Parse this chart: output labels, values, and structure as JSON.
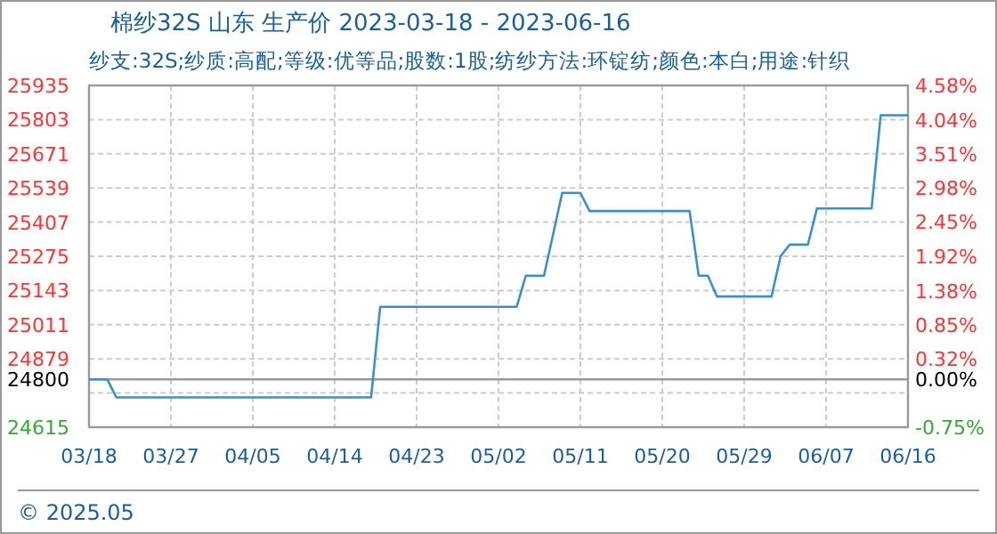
{
  "chart_data": {
    "type": "line",
    "title": "棉纱32S 山东 生产价 2023-03-18 - 2023-06-16",
    "subtitle": "纱支:32S;纱质:高配;等级:优等品;股数:1股;纺纱方法:环锭纺;颜色:本白;用途:针织",
    "x": [
      "2023-03-18",
      "2023-03-20",
      "2023-03-21",
      "2023-04-18",
      "2023-04-19",
      "2023-05-04",
      "2023-05-05",
      "2023-05-07",
      "2023-05-09",
      "2023-05-11",
      "2023-05-12",
      "2023-05-23",
      "2023-05-24",
      "2023-05-25",
      "2023-05-26",
      "2023-06-01",
      "2023-06-02",
      "2023-06-03",
      "2023-06-05",
      "2023-06-06",
      "2023-06-12",
      "2023-06-13",
      "2023-06-16"
    ],
    "series": [
      {
        "color": "#3a8fd0",
        "values": [
          24800,
          24800,
          24730,
          24730,
          25080,
          25080,
          25200,
          25200,
          25520,
          25520,
          25450,
          25450,
          25200,
          25200,
          25120,
          25120,
          25275,
          25320,
          25320,
          25460,
          25460,
          25820,
          25820
        ]
      }
    ],
    "xlim": [
      "2023-03-18",
      "2023-06-16"
    ],
    "xticks": [
      {
        "value": "2023-03-18",
        "label": "03/18"
      },
      {
        "value": "2023-03-27",
        "label": "03/27"
      },
      {
        "value": "2023-04-05",
        "label": "04/05"
      },
      {
        "value": "2023-04-14",
        "label": "04/14"
      },
      {
        "value": "2023-04-23",
        "label": "04/23"
      },
      {
        "value": "2023-05-02",
        "label": "05/02"
      },
      {
        "value": "2023-05-11",
        "label": "05/11"
      },
      {
        "value": "2023-05-20",
        "label": "05/20"
      },
      {
        "value": "2023-05-29",
        "label": "05/29"
      },
      {
        "value": "2023-06-07",
        "label": "06/07"
      },
      {
        "value": "2023-06-16",
        "label": "06/16"
      }
    ],
    "ylim": [
      24615,
      25935
    ],
    "yticks": [
      25935,
      25803,
      25671,
      25539,
      25407,
      25275,
      25143,
      25011,
      24879,
      24800,
      {
        "value": 24747,
        "label": null
      },
      24615
    ],
    "y2lim": [
      -0.75,
      4.58
    ],
    "y2ticks": [
      {
        "value": 4.58,
        "label": "4.58%"
      },
      {
        "value": 4.04,
        "label": "4.04%"
      },
      {
        "value": 3.51,
        "label": "3.51%"
      },
      {
        "value": 2.98,
        "label": "2.98%"
      },
      {
        "value": 2.45,
        "label": "2.45%"
      },
      {
        "value": 1.92,
        "label": "1.92%"
      },
      {
        "value": 1.38,
        "label": "1.38%"
      },
      {
        "value": 0.85,
        "label": "0.85%"
      },
      {
        "value": 0.32,
        "label": "0.32%"
      },
      {
        "value": 0,
        "label": "0.00%"
      },
      {
        "value": -0.75,
        "label": "-0.75%"
      }
    ],
    "ref_lines": [
      {
        "axis": "y",
        "value": 24800,
        "color": "#999999"
      }
    ],
    "grid": true,
    "line_style": "solid",
    "annotations": [
      "© 2025.05"
    ]
  }
}
